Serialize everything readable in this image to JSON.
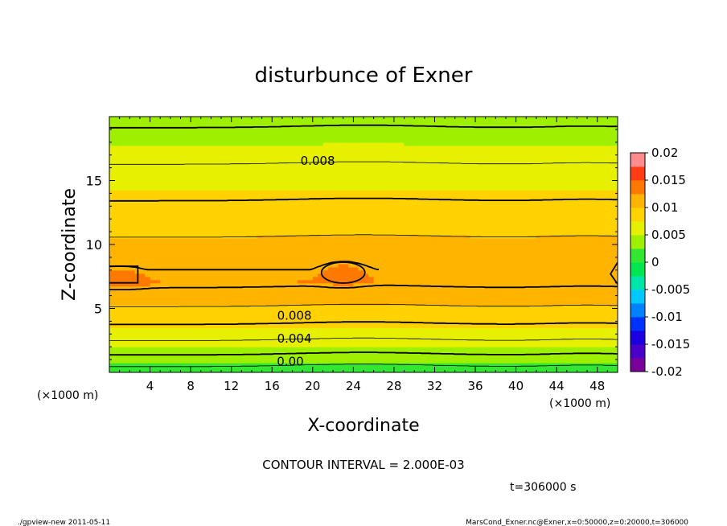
{
  "chart_data": {
    "type": "heatmap",
    "title": "disturbunce of Exner",
    "xlabel": "X-coordinate",
    "ylabel": "Z-coordinate",
    "x_unit_left": "(×1000 m)",
    "x_unit_right": "(×1000 m)",
    "xlim": [
      0,
      50
    ],
    "ylim": [
      0,
      20
    ],
    "x_ticks": [
      4,
      8,
      12,
      16,
      20,
      24,
      28,
      32,
      36,
      40,
      44,
      48
    ],
    "y_ticks": [
      5,
      10,
      15
    ],
    "colorbar": {
      "ticks": [
        "0.02",
        "0.015",
        "0.01",
        "0.005",
        "0",
        "-0.005",
        "-0.01",
        "-0.015",
        "-0.02"
      ],
      "range": [
        -0.02,
        0.02
      ]
    },
    "color_levels": [
      {
        "from": -0.02,
        "to": -0.0175,
        "color": "#7a009a"
      },
      {
        "from": -0.0175,
        "to": -0.015,
        "color": "#4a00c8"
      },
      {
        "from": -0.015,
        "to": -0.0125,
        "color": "#1a00e0"
      },
      {
        "from": -0.0125,
        "to": -0.01,
        "color": "#0032ff"
      },
      {
        "from": -0.01,
        "to": -0.0075,
        "color": "#0082ff"
      },
      {
        "from": -0.0075,
        "to": -0.005,
        "color": "#00c8ff"
      },
      {
        "from": -0.005,
        "to": -0.0025,
        "color": "#00e6aa"
      },
      {
        "from": -0.0025,
        "to": 0.0,
        "color": "#00e650"
      },
      {
        "from": 0.0,
        "to": 0.0025,
        "color": "#32e632"
      },
      {
        "from": 0.0025,
        "to": 0.005,
        "color": "#9ef000"
      },
      {
        "from": 0.005,
        "to": 0.0075,
        "color": "#e6f000"
      },
      {
        "from": 0.0075,
        "to": 0.01,
        "color": "#ffd200"
      },
      {
        "from": 0.01,
        "to": 0.0125,
        "color": "#ffb400"
      },
      {
        "from": 0.0125,
        "to": 0.015,
        "color": "#ff7800"
      },
      {
        "from": 0.015,
        "to": 0.0175,
        "color": "#ff3c14"
      },
      {
        "from": 0.0175,
        "to": 0.02,
        "color": "#ff8c8c"
      }
    ],
    "contour_labels": [
      {
        "text": "0.008",
        "x": 20.5,
        "z": 16.6
      },
      {
        "text": "0.008",
        "x": 18.2,
        "z": 4.5
      },
      {
        "text": "0.004",
        "x": 18.2,
        "z": 2.7
      },
      {
        "text": "0.00",
        "x": 17.8,
        "z": 0.9
      }
    ],
    "contour_interval": "CONTOUR INTERVAL = 2.000E-03",
    "time": "t=306000 s",
    "footer_left": "./gpview-new   2011-05-11",
    "footer_right": "MarsCond_Exner.nc@Exner,x=0:50000,z=0:20000,t=306000"
  }
}
